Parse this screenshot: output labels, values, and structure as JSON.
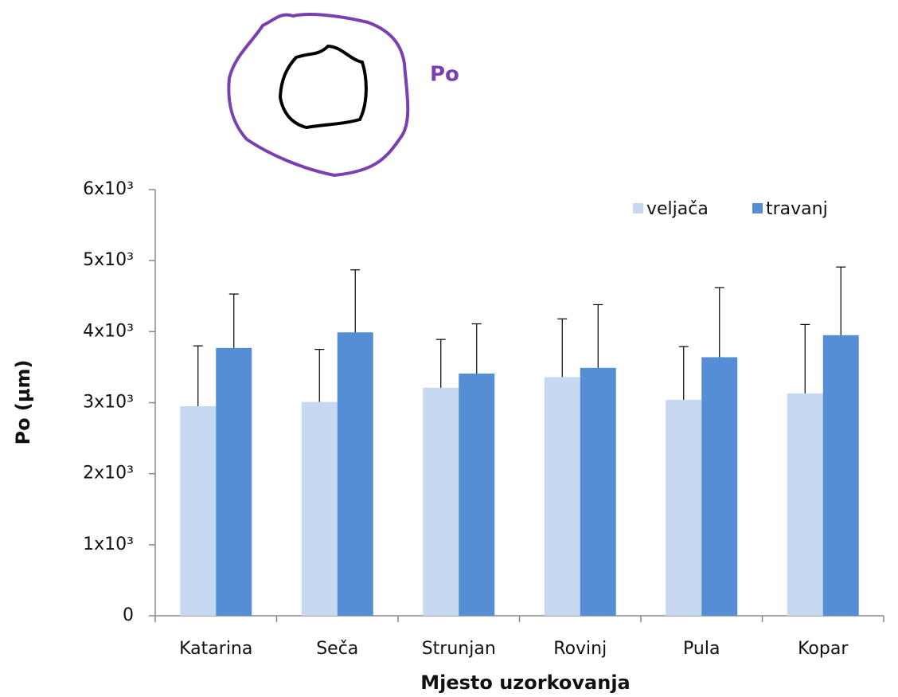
{
  "chart_data": {
    "type": "bar",
    "annotation": "Po",
    "ylabel": "Po  (µm)",
    "xlabel": "Mjesto uzorkovanja",
    "categories": [
      "Katarina",
      "Seča",
      "Strunjan",
      "Rovinj",
      "Pula",
      "Kopar"
    ],
    "series": [
      {
        "name": "veljača",
        "color": "#c6d9f1",
        "values": [
          2950,
          3010,
          3210,
          3360,
          3040,
          3130
        ],
        "errors": [
          850,
          740,
          680,
          820,
          750,
          970
        ]
      },
      {
        "name": "travanj",
        "color": "#558ed5",
        "values": [
          3770,
          3990,
          3410,
          3490,
          3640,
          3950
        ],
        "errors": [
          760,
          880,
          700,
          890,
          980,
          960
        ]
      }
    ],
    "ylim": [
      0,
      6000
    ],
    "yticks": [
      0,
      {
        "value": 1000,
        "label": "1x10³"
      },
      {
        "value": 2000,
        "label": "2x10³"
      },
      {
        "value": 3000,
        "label": "3x10³"
      },
      {
        "value": 4000,
        "label": "4x10³"
      },
      {
        "value": 5000,
        "label": "5x10³"
      },
      {
        "value": 6000,
        "label": "6x10³"
      }
    ],
    "legend": "top-right"
  }
}
